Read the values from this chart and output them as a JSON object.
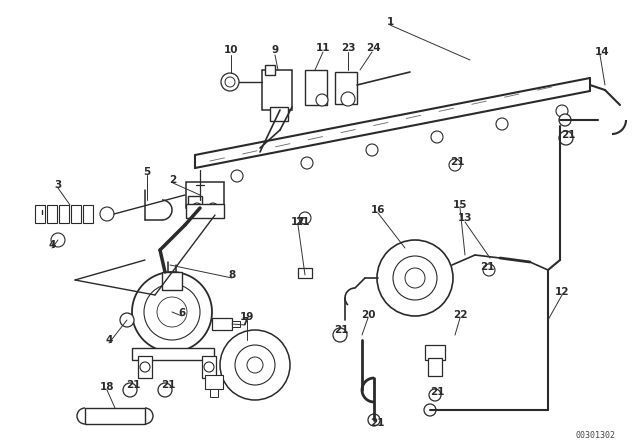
{
  "bg_color": "#ffffff",
  "lc": "#2a2a2a",
  "fig_width": 6.4,
  "fig_height": 4.48,
  "dpi": 100,
  "part_number": "00301302",
  "title_fontsize": 7.5,
  "label_fontsize": 7.5
}
